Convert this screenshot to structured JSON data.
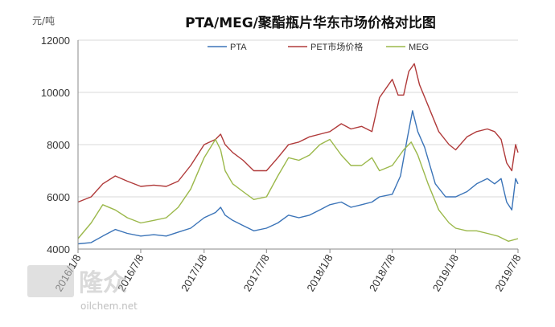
{
  "watermark": {
    "brand": "隆众",
    "site": "oilchem.net"
  },
  "chart_data": {
    "type": "line",
    "title": "PTA/MEG/聚酯瓶片华东市场价格对比图",
    "unit_label": "元/吨",
    "ylim": [
      4000,
      12000
    ],
    "y_ticks": [
      4000,
      6000,
      8000,
      10000,
      12000
    ],
    "x_range": [
      "2016-01-08",
      "2019-07-08"
    ],
    "x_ticks": [
      "2016/1/8",
      "2016/7/8",
      "2017/1/8",
      "2017/7/8",
      "2018/1/8",
      "2018/7/8",
      "2019/1/8",
      "2019/7/8"
    ],
    "grid": "horizontal",
    "legend_position": "top",
    "series": [
      {
        "name": "PTA",
        "color": "#3b74b8",
        "points": [
          [
            "2016-01-08",
            4200
          ],
          [
            "2016-02-15",
            4250
          ],
          [
            "2016-03-20",
            4500
          ],
          [
            "2016-04-25",
            4750
          ],
          [
            "2016-05-30",
            4600
          ],
          [
            "2016-07-08",
            4500
          ],
          [
            "2016-08-15",
            4550
          ],
          [
            "2016-09-20",
            4500
          ],
          [
            "2016-10-25",
            4650
          ],
          [
            "2016-11-30",
            4800
          ],
          [
            "2017-01-08",
            5200
          ],
          [
            "2017-02-10",
            5400
          ],
          [
            "2017-02-25",
            5600
          ],
          [
            "2017-03-10",
            5300
          ],
          [
            "2017-04-01",
            5100
          ],
          [
            "2017-05-01",
            4900
          ],
          [
            "2017-06-01",
            4700
          ],
          [
            "2017-07-08",
            4800
          ],
          [
            "2017-08-10",
            5000
          ],
          [
            "2017-09-10",
            5300
          ],
          [
            "2017-10-10",
            5200
          ],
          [
            "2017-11-10",
            5300
          ],
          [
            "2017-12-10",
            5500
          ],
          [
            "2018-01-08",
            5700
          ],
          [
            "2018-02-10",
            5800
          ],
          [
            "2018-03-10",
            5600
          ],
          [
            "2018-04-10",
            5700
          ],
          [
            "2018-05-10",
            5800
          ],
          [
            "2018-06-01",
            6000
          ],
          [
            "2018-07-08",
            6100
          ],
          [
            "2018-08-01",
            6800
          ],
          [
            "2018-08-20",
            8200
          ],
          [
            "2018-09-05",
            9300
          ],
          [
            "2018-09-20",
            8500
          ],
          [
            "2018-10-10",
            7900
          ],
          [
            "2018-11-10",
            6500
          ],
          [
            "2018-12-10",
            6000
          ],
          [
            "2019-01-08",
            6000
          ],
          [
            "2019-02-10",
            6200
          ],
          [
            "2019-03-10",
            6500
          ],
          [
            "2019-04-10",
            6700
          ],
          [
            "2019-05-01",
            6500
          ],
          [
            "2019-05-20",
            6700
          ],
          [
            "2019-06-05",
            5800
          ],
          [
            "2019-06-20",
            5500
          ],
          [
            "2019-07-01",
            6700
          ],
          [
            "2019-07-08",
            6500
          ]
        ]
      },
      {
        "name": "PET市场价格",
        "color": "#b03a3a",
        "points": [
          [
            "2016-01-08",
            5800
          ],
          [
            "2016-02-15",
            6000
          ],
          [
            "2016-03-20",
            6500
          ],
          [
            "2016-04-25",
            6800
          ],
          [
            "2016-05-30",
            6600
          ],
          [
            "2016-07-08",
            6400
          ],
          [
            "2016-08-15",
            6450
          ],
          [
            "2016-09-20",
            6400
          ],
          [
            "2016-10-25",
            6600
          ],
          [
            "2016-11-30",
            7200
          ],
          [
            "2017-01-08",
            8000
          ],
          [
            "2017-02-10",
            8200
          ],
          [
            "2017-02-25",
            8400
          ],
          [
            "2017-03-10",
            8000
          ],
          [
            "2017-04-01",
            7700
          ],
          [
            "2017-05-01",
            7400
          ],
          [
            "2017-06-01",
            7000
          ],
          [
            "2017-07-08",
            7000
          ],
          [
            "2017-08-10",
            7500
          ],
          [
            "2017-09-10",
            8000
          ],
          [
            "2017-10-10",
            8100
          ],
          [
            "2017-11-10",
            8300
          ],
          [
            "2017-12-10",
            8400
          ],
          [
            "2018-01-08",
            8500
          ],
          [
            "2018-02-10",
            8800
          ],
          [
            "2018-03-10",
            8600
          ],
          [
            "2018-04-10",
            8700
          ],
          [
            "2018-05-10",
            8500
          ],
          [
            "2018-06-01",
            9800
          ],
          [
            "2018-07-08",
            10500
          ],
          [
            "2018-07-25",
            9900
          ],
          [
            "2018-08-10",
            9900
          ],
          [
            "2018-08-25",
            10800
          ],
          [
            "2018-09-10",
            11100
          ],
          [
            "2018-09-25",
            10300
          ],
          [
            "2018-10-20",
            9500
          ],
          [
            "2018-11-20",
            8500
          ],
          [
            "2018-12-20",
            8000
          ],
          [
            "2019-01-08",
            7800
          ],
          [
            "2019-02-10",
            8300
          ],
          [
            "2019-03-10",
            8500
          ],
          [
            "2019-04-10",
            8600
          ],
          [
            "2019-05-01",
            8500
          ],
          [
            "2019-05-20",
            8200
          ],
          [
            "2019-06-05",
            7300
          ],
          [
            "2019-06-20",
            7000
          ],
          [
            "2019-07-01",
            8000
          ],
          [
            "2019-07-08",
            7700
          ]
        ]
      },
      {
        "name": "MEG",
        "color": "#9bb84a",
        "points": [
          [
            "2016-01-08",
            4400
          ],
          [
            "2016-02-15",
            5000
          ],
          [
            "2016-03-20",
            5700
          ],
          [
            "2016-04-25",
            5500
          ],
          [
            "2016-05-30",
            5200
          ],
          [
            "2016-07-08",
            5000
          ],
          [
            "2016-08-15",
            5100
          ],
          [
            "2016-09-20",
            5200
          ],
          [
            "2016-10-25",
            5600
          ],
          [
            "2016-11-30",
            6300
          ],
          [
            "2017-01-08",
            7500
          ],
          [
            "2017-02-10",
            8200
          ],
          [
            "2017-02-25",
            7800
          ],
          [
            "2017-03-10",
            7000
          ],
          [
            "2017-04-01",
            6500
          ],
          [
            "2017-05-01",
            6200
          ],
          [
            "2017-06-01",
            5900
          ],
          [
            "2017-07-08",
            6000
          ],
          [
            "2017-08-10",
            6800
          ],
          [
            "2017-09-10",
            7500
          ],
          [
            "2017-10-10",
            7400
          ],
          [
            "2017-11-10",
            7600
          ],
          [
            "2017-12-10",
            8000
          ],
          [
            "2018-01-08",
            8200
          ],
          [
            "2018-02-10",
            7600
          ],
          [
            "2018-03-10",
            7200
          ],
          [
            "2018-04-10",
            7200
          ],
          [
            "2018-05-10",
            7500
          ],
          [
            "2018-06-01",
            7000
          ],
          [
            "2018-07-08",
            7200
          ],
          [
            "2018-08-10",
            7800
          ],
          [
            "2018-09-01",
            8100
          ],
          [
            "2018-09-20",
            7600
          ],
          [
            "2018-10-20",
            6500
          ],
          [
            "2018-11-20",
            5500
          ],
          [
            "2018-12-20",
            5000
          ],
          [
            "2019-01-08",
            4800
          ],
          [
            "2019-02-10",
            4700
          ],
          [
            "2019-03-10",
            4700
          ],
          [
            "2019-04-10",
            4600
          ],
          [
            "2019-05-10",
            4500
          ],
          [
            "2019-06-10",
            4300
          ],
          [
            "2019-07-08",
            4400
          ]
        ]
      }
    ]
  }
}
